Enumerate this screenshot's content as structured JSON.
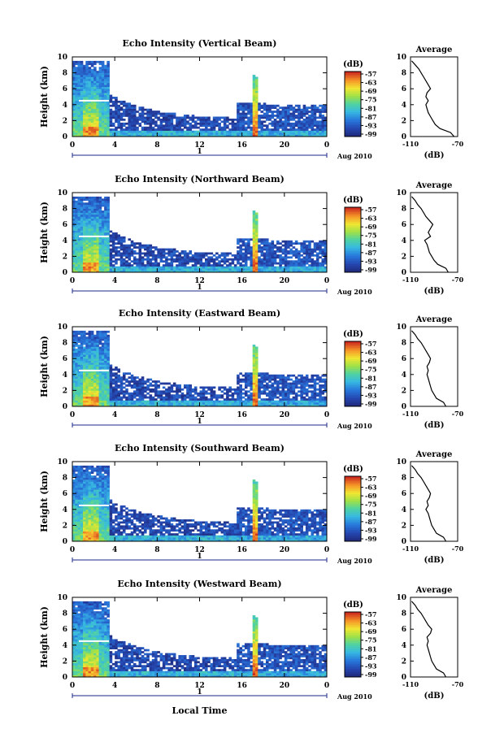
{
  "figure": {
    "xlabel": "Local Time",
    "date_label": "Aug 2010",
    "day_label": "1",
    "colorbar_unit": "(dB)",
    "avg_title": "Average",
    "avg_xlabel": "(dB)"
  },
  "chart_data": [
    {
      "type": "heatmap",
      "title": "Echo Intensity (Vertical Beam)",
      "ylabel": "Height (km)",
      "x_ticks": [
        "0",
        "4",
        "8",
        "12",
        "16",
        "20",
        "0"
      ],
      "y_ticks": [
        "0",
        "2",
        "4",
        "6",
        "8",
        "10"
      ],
      "xlim": [
        0,
        24
      ],
      "ylim": [
        0,
        10
      ],
      "colorbar_ticks": [
        "-57",
        "-63",
        "-69",
        "-75",
        "-81",
        "-87",
        "-93",
        "-99"
      ],
      "average": {
        "xlim": [
          -110,
          -70
        ],
        "x_ticks": [
          "-110",
          "-70"
        ],
        "y_ticks": [
          "0",
          "2",
          "4",
          "6",
          "8",
          "10"
        ],
        "height": [
          0,
          0.5,
          1,
          1.5,
          2,
          2.5,
          3,
          3.5,
          4,
          4.5,
          5,
          5.5,
          6,
          6.5,
          7,
          7.5,
          8,
          8.5,
          9,
          9.5
        ],
        "value": [
          -73,
          -76,
          -85,
          -89,
          -91,
          -93,
          -95,
          -96,
          -97,
          -95,
          -97,
          -96,
          -93,
          -95,
          -97,
          -99,
          -101,
          -103,
          -106,
          -109
        ]
      }
    },
    {
      "type": "heatmap",
      "title": "Echo Intensity (Northward Beam)",
      "ylabel": "Height (km)",
      "x_ticks": [
        "0",
        "4",
        "8",
        "12",
        "16",
        "20",
        "0"
      ],
      "y_ticks": [
        "0",
        "2",
        "4",
        "6",
        "8",
        "10"
      ],
      "xlim": [
        0,
        24
      ],
      "ylim": [
        0,
        10
      ],
      "colorbar_ticks": [
        "-57",
        "-63",
        "-69",
        "-75",
        "-81",
        "-87",
        "-93",
        "-99"
      ],
      "average": {
        "xlim": [
          -110,
          -70
        ],
        "x_ticks": [
          "-110",
          "-70"
        ],
        "y_ticks": [
          "0",
          "2",
          "4",
          "6",
          "8",
          "10"
        ],
        "height": [
          0,
          0.5,
          1,
          1.5,
          2,
          2.5,
          3,
          3.5,
          4,
          4.5,
          5,
          5.5,
          6,
          6.5,
          7,
          7.5,
          8,
          8.5,
          9,
          9.5
        ],
        "value": [
          -78,
          -80,
          -87,
          -90,
          -92,
          -94,
          -95,
          -96,
          -98,
          -93,
          -95,
          -93,
          -91,
          -94,
          -97,
          -99,
          -101,
          -104,
          -106,
          -109
        ]
      }
    },
    {
      "type": "heatmap",
      "title": "Echo Intensity (Eastward Beam)",
      "ylabel": "Height (km)",
      "x_ticks": [
        "0",
        "4",
        "8",
        "12",
        "16",
        "20",
        "0"
      ],
      "y_ticks": [
        "0",
        "2",
        "4",
        "6",
        "8",
        "10"
      ],
      "xlim": [
        0,
        24
      ],
      "ylim": [
        0,
        10
      ],
      "colorbar_ticks": [
        "-57",
        "-63",
        "-69",
        "-75",
        "-81",
        "-87",
        "-93",
        "-99"
      ],
      "average": {
        "xlim": [
          -110,
          -70
        ],
        "x_ticks": [
          "-110",
          "-70"
        ],
        "y_ticks": [
          "0",
          "2",
          "4",
          "6",
          "8",
          "10"
        ],
        "height": [
          0,
          0.5,
          1,
          1.5,
          2,
          2.5,
          3,
          3.5,
          4,
          4.5,
          5,
          5.5,
          6,
          6.5,
          7,
          7.5,
          8,
          8.5,
          9,
          9.5
        ],
        "value": [
          -80,
          -82,
          -88,
          -90,
          -92,
          -93,
          -94,
          -95,
          -96,
          -95,
          -96,
          -94,
          -93,
          -95,
          -97,
          -99,
          -101,
          -104,
          -106,
          -109
        ]
      }
    },
    {
      "type": "heatmap",
      "title": "Echo Intensity (Southward Beam)",
      "ylabel": "Height (km)",
      "x_ticks": [
        "0",
        "4",
        "8",
        "12",
        "16",
        "20",
        "0"
      ],
      "y_ticks": [
        "0",
        "2",
        "4",
        "6",
        "8",
        "10"
      ],
      "xlim": [
        0,
        24
      ],
      "ylim": [
        0,
        10
      ],
      "colorbar_ticks": [
        "-57",
        "-63",
        "-69",
        "-75",
        "-81",
        "-87",
        "-93",
        "-99"
      ],
      "average": {
        "xlim": [
          -110,
          -70
        ],
        "x_ticks": [
          "-110",
          "-70"
        ],
        "y_ticks": [
          "0",
          "2",
          "4",
          "6",
          "8",
          "10"
        ],
        "height": [
          0,
          0.5,
          1,
          1.5,
          2,
          2.5,
          3,
          3.5,
          4,
          4.5,
          5,
          5.5,
          6,
          6.5,
          7,
          7.5,
          8,
          8.5,
          9,
          9.5
        ],
        "value": [
          -80,
          -82,
          -88,
          -90,
          -92,
          -93,
          -94,
          -95,
          -97,
          -95,
          -96,
          -94,
          -93,
          -95,
          -97,
          -99,
          -101,
          -104,
          -106,
          -109
        ]
      }
    },
    {
      "type": "heatmap",
      "title": "Echo Intensity (Westward Beam)",
      "ylabel": "Height (km)",
      "x_ticks": [
        "0",
        "4",
        "8",
        "12",
        "16",
        "20",
        "0"
      ],
      "y_ticks": [
        "0",
        "2",
        "4",
        "6",
        "8",
        "10"
      ],
      "xlim": [
        0,
        24
      ],
      "ylim": [
        0,
        10
      ],
      "colorbar_ticks": [
        "-57",
        "-63",
        "-69",
        "-75",
        "-81",
        "-87",
        "-93",
        "-99"
      ],
      "average": {
        "xlim": [
          -110,
          -70
        ],
        "x_ticks": [
          "-110",
          "-70"
        ],
        "y_ticks": [
          "0",
          "2",
          "4",
          "6",
          "8",
          "10"
        ],
        "height": [
          0,
          0.5,
          1,
          1.5,
          2,
          2.5,
          3,
          3.5,
          4,
          4.5,
          5,
          5.5,
          6,
          6.5,
          7,
          7.5,
          8,
          8.5,
          9,
          9.5
        ],
        "value": [
          -80,
          -82,
          -88,
          -90,
          -92,
          -93,
          -94,
          -95,
          -96,
          -95,
          -96,
          -93,
          -92,
          -95,
          -97,
          -99,
          -101,
          -104,
          -106,
          -109
        ]
      }
    }
  ]
}
